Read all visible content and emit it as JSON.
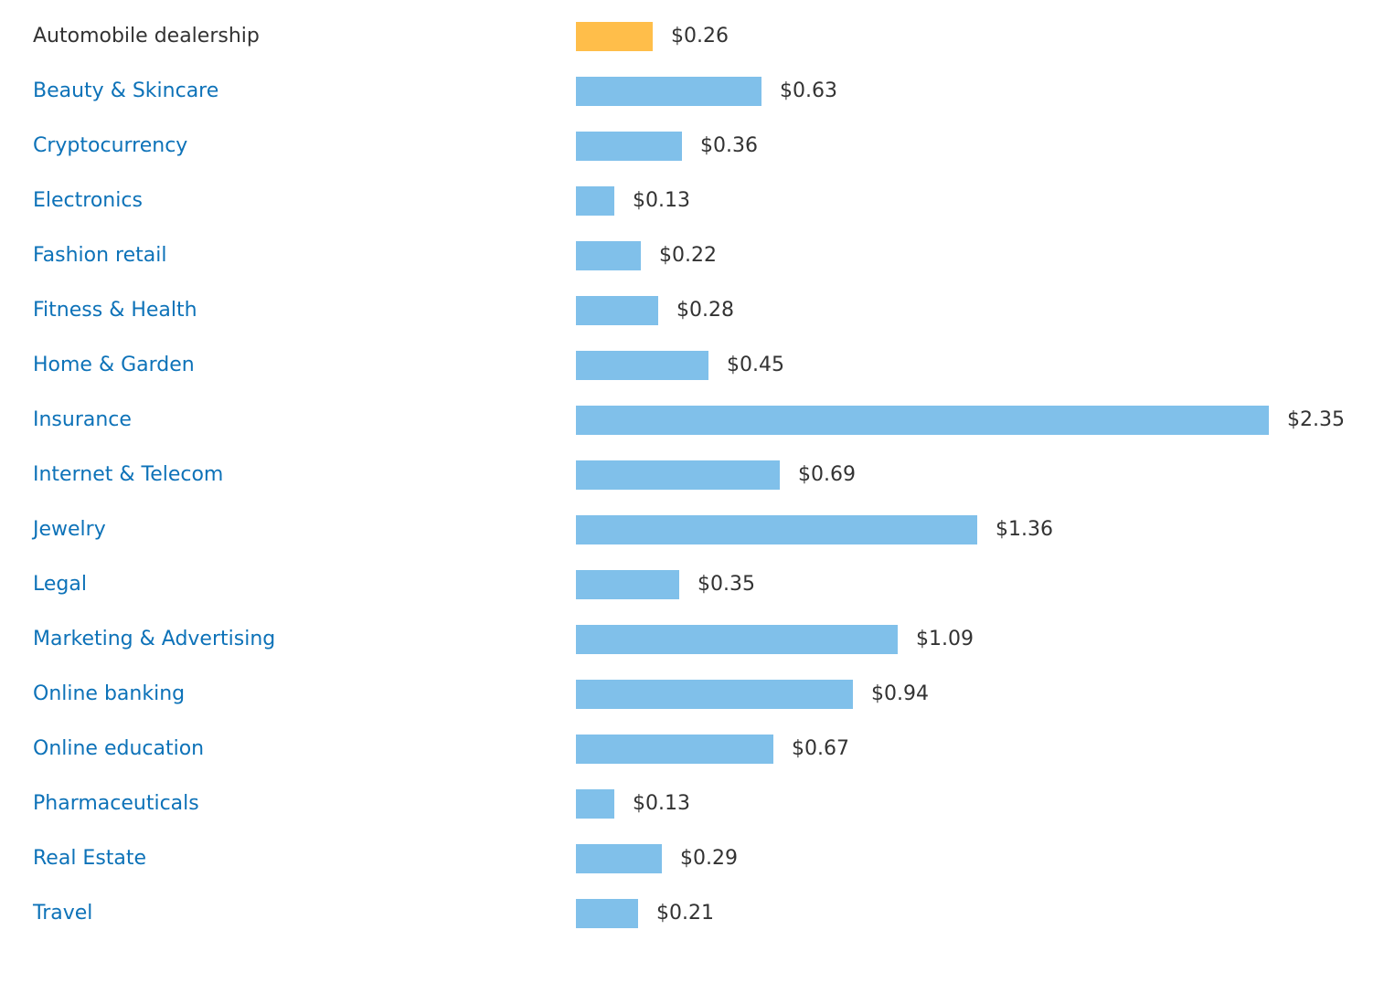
{
  "chart_data": {
    "type": "bar",
    "orientation": "horizontal",
    "grid": false,
    "legend": "none",
    "xlim": [
      0,
      2.35
    ],
    "categories": [
      "Automobile dealership",
      "Beauty & Skincare",
      "Cryptocurrency",
      "Electronics",
      "Fashion retail",
      "Fitness & Health",
      "Home & Garden",
      "Insurance",
      "Internet & Telecom",
      "Jewelry",
      "Legal",
      "Marketing & Advertising",
      "Online banking",
      "Online education",
      "Pharmaceuticals",
      "Real Estate",
      "Travel"
    ],
    "values": [
      0.26,
      0.63,
      0.36,
      0.13,
      0.22,
      0.28,
      0.45,
      2.35,
      0.69,
      1.36,
      0.35,
      1.09,
      0.94,
      0.67,
      0.13,
      0.29,
      0.21
    ],
    "value_labels": [
      "$0.26",
      "$0.63",
      "$0.36",
      "$0.13",
      "$0.22",
      "$0.28",
      "$0.45",
      "$2.35",
      "$0.69",
      "$1.36",
      "$0.35",
      "$1.09",
      "$0.94",
      "$0.67",
      "$0.13",
      "$0.29",
      "$0.21"
    ],
    "highlighted_category": "Automobile dealership",
    "colors": {
      "highlight_bar": "#ffbe4a",
      "bar": "#80c0ea",
      "link_label": "#0d72b8",
      "current_label": "#333333",
      "value_label": "#333333"
    }
  }
}
